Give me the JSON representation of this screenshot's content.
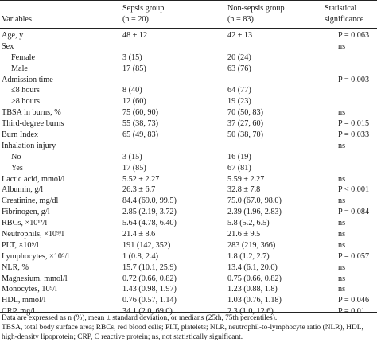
{
  "header": {
    "variables": "Variables",
    "sepsis_group": "Sepsis group",
    "sepsis_n": "(n = 20)",
    "nonsepsis_group": "Non-sepsis group",
    "nonsepsis_n": "(n = 83)",
    "significance_line1": "Statistical",
    "significance_line2": "significance"
  },
  "rows": [
    {
      "label": "Age, y",
      "sepsis": "48 ± 12",
      "nonsepsis": "42 ± 13",
      "sig": "P = 0.063",
      "indent": false
    },
    {
      "label": "Sex",
      "sepsis": "",
      "nonsepsis": "",
      "sig": "ns",
      "indent": false
    },
    {
      "label": "Female",
      "sepsis": "3 (15)",
      "nonsepsis": "20 (24)",
      "sig": "",
      "indent": true
    },
    {
      "label": "Male",
      "sepsis": "17 (85)",
      "nonsepsis": "63 (76)",
      "sig": "",
      "indent": true
    },
    {
      "label": "Admission time",
      "sepsis": "",
      "nonsepsis": "",
      "sig": "P = 0.003",
      "indent": false
    },
    {
      "label": "≤8 hours",
      "sepsis": "8 (40)",
      "nonsepsis": "64 (77)",
      "sig": "",
      "indent": true
    },
    {
      "label": ">8 hours",
      "sepsis": "12 (60)",
      "nonsepsis": "19 (23)",
      "sig": "",
      "indent": true
    },
    {
      "label": "TBSA in burns, %",
      "sepsis": "75 (60, 90)",
      "nonsepsis": "70 (50, 83)",
      "sig": "ns",
      "indent": false
    },
    {
      "label": "Third-degree burns",
      "sepsis": "55 (38, 73)",
      "nonsepsis": "37 (27, 60)",
      "sig": "P = 0.015",
      "indent": false
    },
    {
      "label": "Burn Index",
      "sepsis": "65 (49, 83)",
      "nonsepsis": "50 (38, 70)",
      "sig": "P = 0.033",
      "indent": false
    },
    {
      "label": "Inhalation injury",
      "sepsis": "",
      "nonsepsis": "",
      "sig": "ns",
      "indent": false
    },
    {
      "label": "No",
      "sepsis": "3 (15)",
      "nonsepsis": "16 (19)",
      "sig": "",
      "indent": true
    },
    {
      "label": "Yes",
      "sepsis": "17 (85)",
      "nonsepsis": "67 (81)",
      "sig": "",
      "indent": true
    },
    {
      "label": "Lactic acid, mmol/l",
      "sepsis": "5.52 ± 2.27",
      "nonsepsis": "5.59 ± 2.27",
      "sig": "ns",
      "indent": false
    },
    {
      "label": "Albumin, g/l",
      "sepsis": "26.3 ± 6.7",
      "nonsepsis": "32.8 ± 7.8",
      "sig": "P < 0.001",
      "indent": false
    },
    {
      "label": "Creatinine, mg/dl",
      "sepsis": "84.4 (69.0, 99.5)",
      "nonsepsis": "75.0 (67.0, 98.0)",
      "sig": "ns",
      "indent": false
    },
    {
      "label": "Fibrinogen, g/l",
      "sepsis": "2.85 (2.19, 3.72)",
      "nonsepsis": "2.39 (1.96, 2.83)",
      "sig": "P = 0.084",
      "indent": false
    },
    {
      "label": "RBCs, ×10¹²/l",
      "sepsis": "5.64 (4.78, 6.40)",
      "nonsepsis": "5.8 (5.2, 6.5)",
      "sig": "ns",
      "indent": false
    },
    {
      "label": "Neutrophils, ×10⁹/l",
      "sepsis": "21.4 ± 8.6",
      "nonsepsis": "21.6 ± 9.5",
      "sig": "ns",
      "indent": false
    },
    {
      "label": "PLT, ×10⁹/l",
      "sepsis": "191 (142, 352)",
      "nonsepsis": "283 (219, 366)",
      "sig": "ns",
      "indent": false
    },
    {
      "label": "Lymphocytes, ×10⁹/l",
      "sepsis": "1 (0.8, 2.4)",
      "nonsepsis": "1.8 (1.2, 2.7)",
      "sig": "P = 0.057",
      "indent": false
    },
    {
      "label": "NLR, %",
      "sepsis": "15.7 (10.1, 25.9)",
      "nonsepsis": "13.4 (6.1, 20.0)",
      "sig": "ns",
      "indent": false
    },
    {
      "label": "Magnesium, mmol/l",
      "sepsis": "0.72 (0.66, 0.82)",
      "nonsepsis": "0.75 (0.66, 0.82)",
      "sig": "ns",
      "indent": false
    },
    {
      "label": "Monocytes, 10⁹/l",
      "sepsis": "1.43 (0.98, 1.97)",
      "nonsepsis": "1.23 (0.88, 1.8)",
      "sig": "ns",
      "indent": false
    },
    {
      "label": "HDL, mmol/l",
      "sepsis": "0.76 (0.57, 1.14)",
      "nonsepsis": "1.03 (0.76, 1.18)",
      "sig": "P = 0.046",
      "indent": false
    },
    {
      "label": "CRP, mg/l",
      "sepsis": "34.1 (2.0, 69.0)",
      "nonsepsis": "2.3 (1.0, 12.6)",
      "sig": "P = 0.01",
      "indent": false
    }
  ],
  "notes": [
    "Data are expressed as n (%), mean ± standard deviation, or medians (25th, 75th percentiles).",
    "TBSA, total body surface area; RBCs, red blood cells; PLT, platelets; NLR, neutrophil-to-lymphocyte ratio (NLR), HDL,",
    "high-density lipoprotein; CRP, C reactive protein; ns, not statistically significant."
  ]
}
